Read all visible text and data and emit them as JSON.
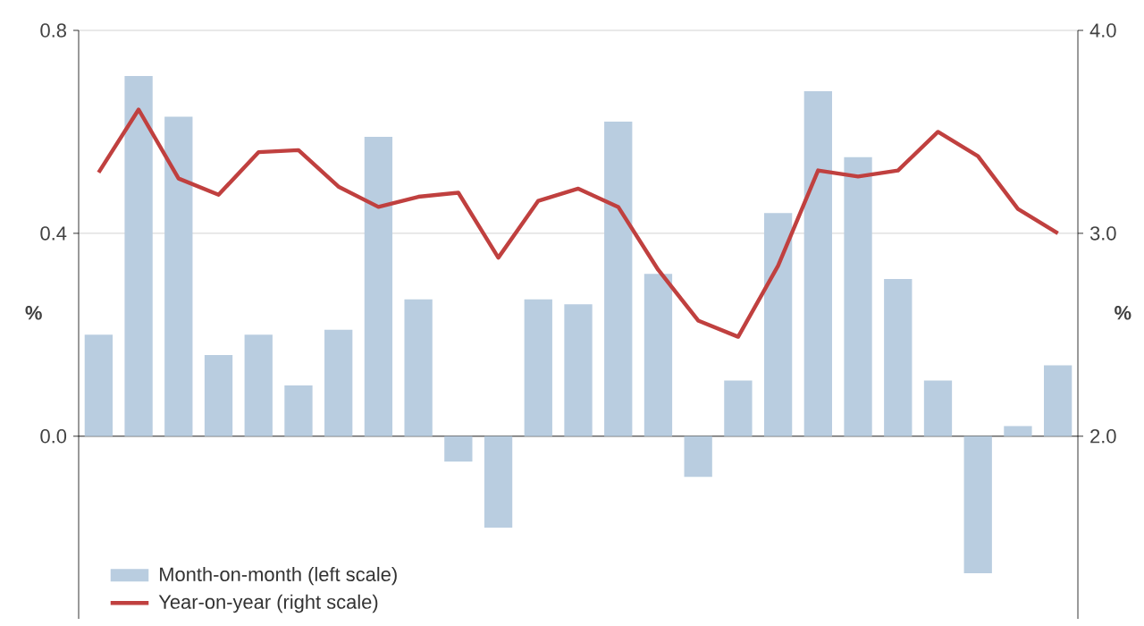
{
  "chart_data": {
    "type": "bar",
    "categories": [
      null,
      null,
      null,
      null,
      null,
      null,
      null,
      null,
      null,
      null,
      null,
      null,
      null,
      null,
      null,
      null,
      null,
      null,
      null,
      null,
      null,
      null,
      null,
      null,
      null
    ],
    "series": [
      {
        "name": "Month-on-month (left scale)",
        "color": "#b9cde0",
        "values": [
          0.2,
          0.71,
          0.63,
          0.16,
          0.2,
          0.1,
          0.21,
          0.59,
          0.27,
          -0.05,
          -0.18,
          0.27,
          0.26,
          0.62,
          0.32,
          -0.08,
          0.11,
          0.44,
          0.68,
          0.55,
          0.31,
          0.11,
          -0.27,
          0.02,
          0.14
        ]
      },
      {
        "name": "Year-on-year (right scale)",
        "type": "line",
        "axis": "y2",
        "color": "#c0403f",
        "values": [
          3.3,
          3.61,
          3.27,
          3.19,
          3.4,
          3.41,
          3.23,
          3.13,
          3.18,
          3.2,
          2.88,
          3.16,
          3.22,
          3.13,
          2.82,
          2.57,
          2.49,
          2.84,
          3.31,
          3.28,
          3.31,
          3.5,
          3.38,
          3.12,
          3.0
        ]
      }
    ],
    "ylabel": "%",
    "y2label": "%",
    "ylim": [
      -0.36,
      0.8
    ],
    "yticks": [
      {
        "value": 0,
        "label": "0.0"
      },
      0.4,
      0.8
    ],
    "y2lim": [
      1.1,
      4.0
    ],
    "y2ticks": [
      {
        "value": 2,
        "label": "2.0"
      },
      {
        "value": 3,
        "label": "3.0"
      },
      {
        "value": 4,
        "label": "4.0"
      }
    ],
    "grid": "y",
    "legend": "bottom left"
  }
}
